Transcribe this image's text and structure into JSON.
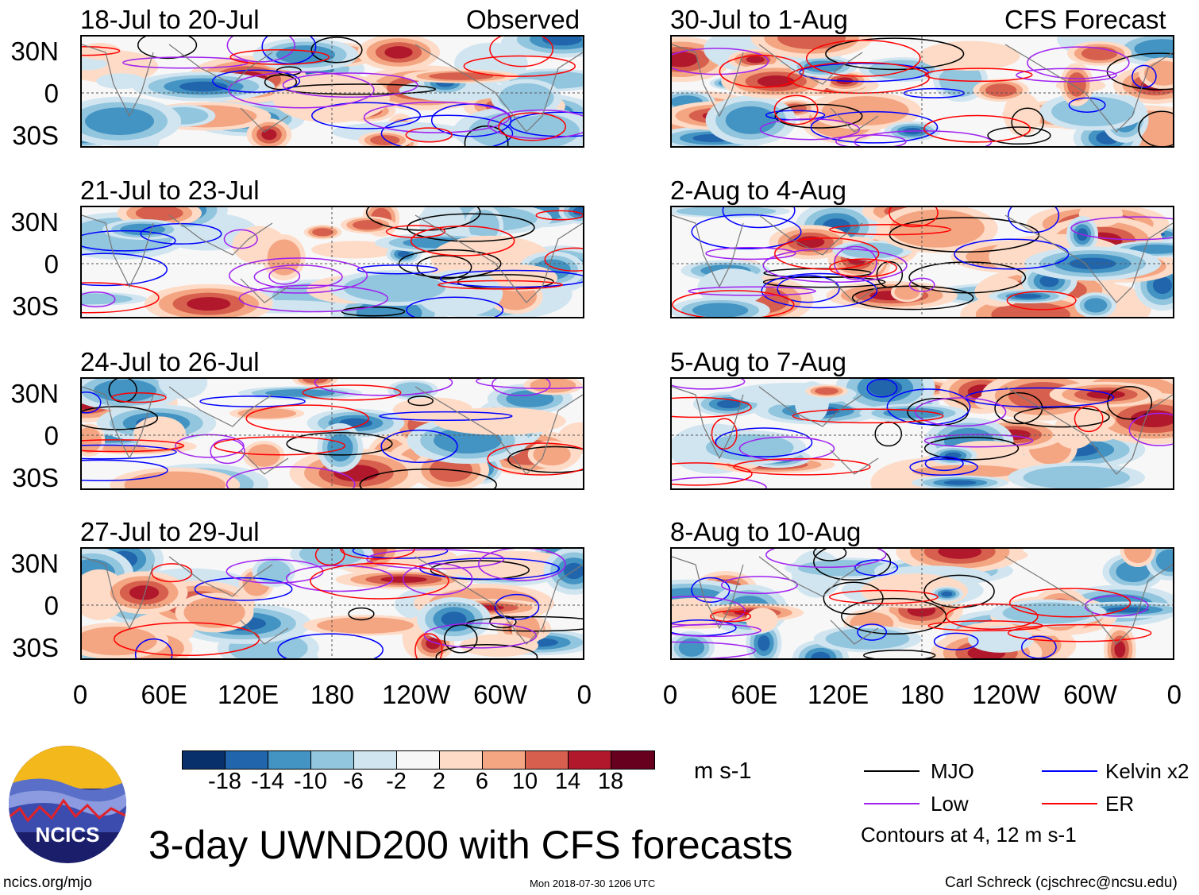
{
  "headers": {
    "left": "Observed",
    "right": "CFS Forecast"
  },
  "panels": [
    {
      "title": "18-Jul to 20-Jul",
      "column": "left",
      "row": 0
    },
    {
      "title": "21-Jul to 23-Jul",
      "column": "left",
      "row": 1
    },
    {
      "title": "24-Jul to 26-Jul",
      "column": "left",
      "row": 2
    },
    {
      "title": "27-Jul to 29-Jul",
      "column": "left",
      "row": 3
    },
    {
      "title": "30-Jul to 1-Aug",
      "column": "right",
      "row": 0
    },
    {
      "title": "2-Aug to 4-Aug",
      "column": "right",
      "row": 1
    },
    {
      "title": "5-Aug to 7-Aug",
      "column": "right",
      "row": 2
    },
    {
      "title": "8-Aug to 10-Aug",
      "column": "right",
      "row": 3
    }
  ],
  "lat_labels": [
    "30N",
    "0",
    "30S"
  ],
  "lon_labels": [
    "0",
    "60E",
    "120E",
    "180",
    "120W",
    "60W",
    "0"
  ],
  "colorbar": {
    "labels": [
      "-18",
      "-14",
      "-10",
      "-6",
      "-2",
      "2",
      "6",
      "10",
      "14",
      "18"
    ],
    "colors": [
      "#08306b",
      "#2166ac",
      "#4393c3",
      "#92c5de",
      "#d1e5f0",
      "#f7f7f7",
      "#fddbc7",
      "#f4a582",
      "#d6604d",
      "#b2182b",
      "#67001f"
    ],
    "units": "m s-1"
  },
  "legend": {
    "items": [
      {
        "label": "MJO",
        "color": "#000000"
      },
      {
        "label": "Kelvin x2",
        "color": "#0000ff"
      },
      {
        "label": "Low",
        "color": "#a020f0"
      },
      {
        "label": "ER",
        "color": "#ff0000"
      }
    ],
    "note": "Contours at 4, 12 m s-1"
  },
  "logo_text": "NCICS",
  "title": "3-day UWND200 with CFS forecasts",
  "footer": {
    "url": "ncics.org/mjo",
    "timestamp": "Mon 2018-07-30 1206 UTC",
    "author": "Carl Schreck (cjschrec@ncsu.edu)"
  }
}
